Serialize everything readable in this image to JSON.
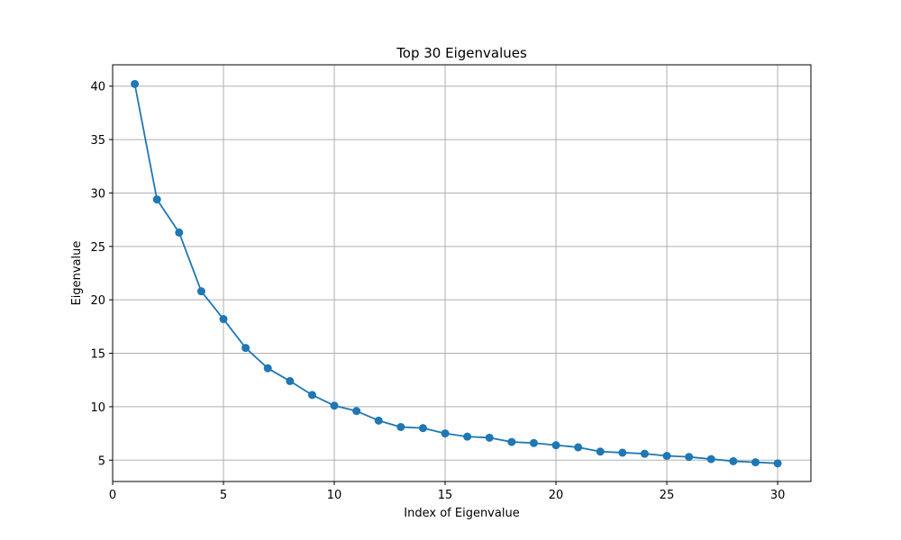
{
  "chart_data": {
    "type": "line",
    "title": "Top 30 Eigenvalues",
    "xlabel": "Index of Eigenvalue",
    "ylabel": "Eigenvalue",
    "xlim": [
      0,
      31.5
    ],
    "ylim": [
      3.0,
      42.0
    ],
    "xticks": [
      0,
      5,
      10,
      15,
      20,
      25,
      30
    ],
    "yticks": [
      5,
      10,
      15,
      20,
      25,
      30,
      35,
      40
    ],
    "grid": true,
    "marker": "circle",
    "colors": {
      "line": "#1f77b4",
      "grid": "#b0b0b0",
      "axes": "#000000"
    },
    "series": [
      {
        "x": [
          1,
          2,
          3,
          4,
          5,
          6,
          7,
          8,
          9,
          10,
          11,
          12,
          13,
          14,
          15,
          16,
          17,
          18,
          19,
          20,
          21,
          22,
          23,
          24,
          25,
          26,
          27,
          28,
          29,
          30
        ],
        "values": [
          40.2,
          29.4,
          26.3,
          20.8,
          18.2,
          15.5,
          13.6,
          12.4,
          11.1,
          10.1,
          9.6,
          8.7,
          8.1,
          8.0,
          7.5,
          7.2,
          7.1,
          6.7,
          6.6,
          6.4,
          6.2,
          5.8,
          5.7,
          5.6,
          5.4,
          5.3,
          5.1,
          4.9,
          4.8,
          4.7
        ]
      }
    ]
  }
}
